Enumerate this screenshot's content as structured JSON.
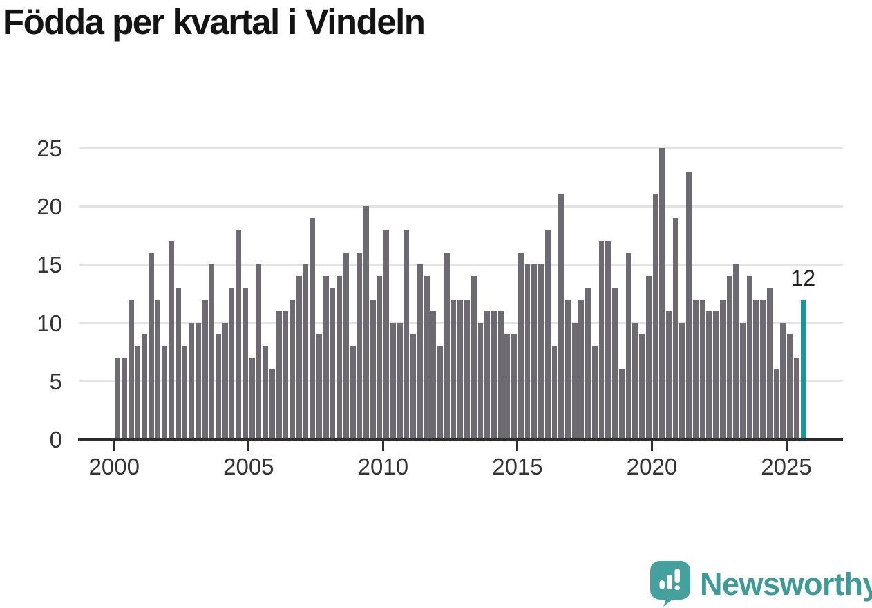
{
  "title": "Födda per kvartal i Vindeln",
  "footer": {
    "brand": "Newsworthy"
  },
  "colors": {
    "bar": "#6d6a71",
    "highlight": "#089e9b",
    "grid": "#e4e4e4",
    "axis": "#2e2e2e",
    "tick_text": "#343434",
    "title_text": "#141414",
    "logo": "#3d9a94",
    "background": "#ffffff"
  },
  "chart_data": {
    "type": "bar",
    "title": "Födda per kvartal i Vindeln",
    "x_unit": "quarter",
    "start": "2000-Q1",
    "end": "2025-Q3",
    "values": [
      7,
      7,
      12,
      8,
      9,
      16,
      12,
      8,
      17,
      13,
      8,
      10,
      10,
      12,
      15,
      9,
      10,
      13,
      18,
      13,
      7,
      15,
      8,
      6,
      11,
      11,
      12,
      14,
      15,
      19,
      9,
      14,
      13,
      14,
      16,
      8,
      16,
      20,
      12,
      14,
      18,
      10,
      10,
      18,
      9,
      15,
      14,
      11,
      8,
      16,
      12,
      12,
      12,
      14,
      10,
      11,
      11,
      11,
      9,
      9,
      16,
      15,
      15,
      15,
      18,
      8,
      21,
      12,
      10,
      12,
      13,
      8,
      17,
      17,
      13,
      6,
      16,
      10,
      9,
      14,
      21,
      25,
      11,
      19,
      10,
      23,
      12,
      12,
      11,
      11,
      12,
      14,
      15,
      10,
      14,
      12,
      12,
      13,
      6,
      10,
      9,
      7,
      12
    ],
    "highlight_index": 102,
    "highlight_label": "12",
    "y_ticks": [
      0,
      5,
      10,
      15,
      20,
      25
    ],
    "x_ticks": [
      2000,
      2005,
      2010,
      2015,
      2020,
      2025
    ],
    "ylim": [
      0,
      25
    ],
    "grid": true,
    "legend": false
  }
}
